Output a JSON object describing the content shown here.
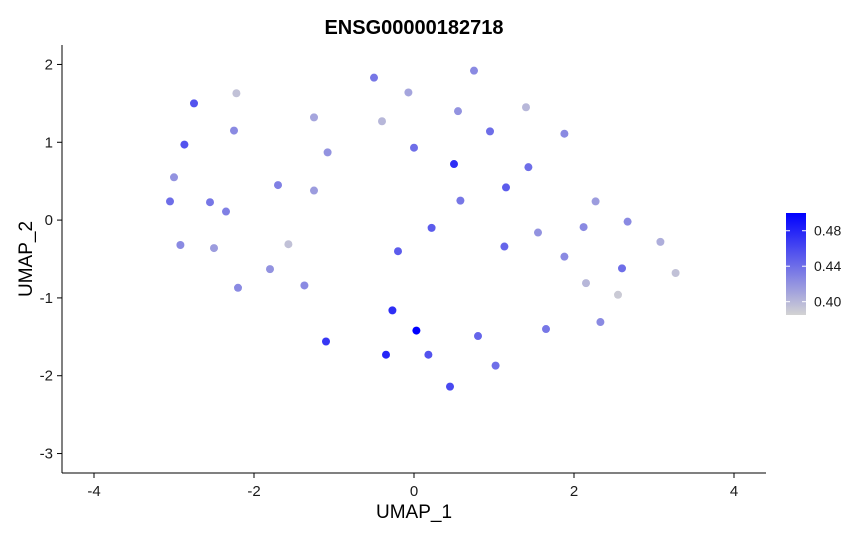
{
  "chart_data": {
    "type": "scatter",
    "title": "ENSG00000182718",
    "xlabel": "UMAP_1",
    "ylabel": "UMAP_2",
    "xlim": [
      -4.4,
      4.4
    ],
    "ylim": [
      -3.25,
      2.25
    ],
    "xticks": [
      -4,
      -2,
      0,
      2,
      4
    ],
    "yticks": [
      -3,
      -2,
      -1,
      0,
      1,
      2
    ],
    "grid": false,
    "legend": {
      "position": "right",
      "breaks": [
        0.4,
        0.44,
        0.48
      ],
      "labels": [
        "0.40",
        "0.44",
        "0.48"
      ],
      "range": [
        0.385,
        0.5
      ],
      "low_color": "#d3d3d3",
      "high_color": "#0000ff"
    },
    "points": [
      {
        "x": -2.75,
        "y": 1.5,
        "value": 0.455
      },
      {
        "x": -2.22,
        "y": 1.63,
        "value": 0.395
      },
      {
        "x": -2.25,
        "y": 1.15,
        "value": 0.425
      },
      {
        "x": -2.87,
        "y": 0.97,
        "value": 0.455
      },
      {
        "x": -3.0,
        "y": 0.55,
        "value": 0.42
      },
      {
        "x": -3.05,
        "y": 0.24,
        "value": 0.44
      },
      {
        "x": -2.55,
        "y": 0.23,
        "value": 0.435
      },
      {
        "x": -2.35,
        "y": 0.11,
        "value": 0.43
      },
      {
        "x": -2.92,
        "y": -0.32,
        "value": 0.425
      },
      {
        "x": -2.5,
        "y": -0.36,
        "value": 0.415
      },
      {
        "x": -1.57,
        "y": -0.31,
        "value": 0.395
      },
      {
        "x": -1.8,
        "y": -0.63,
        "value": 0.42
      },
      {
        "x": -2.2,
        "y": -0.87,
        "value": 0.425
      },
      {
        "x": -1.37,
        "y": -0.84,
        "value": 0.425
      },
      {
        "x": -1.7,
        "y": 0.45,
        "value": 0.43
      },
      {
        "x": -1.25,
        "y": 0.38,
        "value": 0.415
      },
      {
        "x": -1.25,
        "y": 1.32,
        "value": 0.41
      },
      {
        "x": -1.08,
        "y": 0.87,
        "value": 0.42
      },
      {
        "x": -0.5,
        "y": 1.83,
        "value": 0.435
      },
      {
        "x": -0.4,
        "y": 1.27,
        "value": 0.4
      },
      {
        "x": -0.07,
        "y": 1.64,
        "value": 0.41
      },
      {
        "x": 0.0,
        "y": 0.93,
        "value": 0.44
      },
      {
        "x": 0.75,
        "y": 1.92,
        "value": 0.425
      },
      {
        "x": 0.55,
        "y": 1.4,
        "value": 0.42
      },
      {
        "x": 0.95,
        "y": 1.14,
        "value": 0.44
      },
      {
        "x": 1.4,
        "y": 1.45,
        "value": 0.4
      },
      {
        "x": 1.88,
        "y": 1.11,
        "value": 0.425
      },
      {
        "x": 0.5,
        "y": 0.72,
        "value": 0.475
      },
      {
        "x": 1.15,
        "y": 0.42,
        "value": 0.45
      },
      {
        "x": 1.43,
        "y": 0.68,
        "value": 0.44
      },
      {
        "x": 0.58,
        "y": 0.25,
        "value": 0.435
      },
      {
        "x": 0.22,
        "y": -0.1,
        "value": 0.45
      },
      {
        "x": -0.2,
        "y": -0.4,
        "value": 0.45
      },
      {
        "x": 1.13,
        "y": -0.34,
        "value": 0.445
      },
      {
        "x": 1.55,
        "y": -0.16,
        "value": 0.42
      },
      {
        "x": 2.12,
        "y": -0.09,
        "value": 0.425
      },
      {
        "x": 2.27,
        "y": 0.24,
        "value": 0.415
      },
      {
        "x": 2.67,
        "y": -0.02,
        "value": 0.425
      },
      {
        "x": 1.88,
        "y": -0.47,
        "value": 0.425
      },
      {
        "x": 2.15,
        "y": -0.81,
        "value": 0.4
      },
      {
        "x": 2.6,
        "y": -0.62,
        "value": 0.44
      },
      {
        "x": 3.08,
        "y": -0.28,
        "value": 0.405
      },
      {
        "x": 3.27,
        "y": -0.68,
        "value": 0.395
      },
      {
        "x": 2.55,
        "y": -0.96,
        "value": 0.39
      },
      {
        "x": 2.33,
        "y": -1.31,
        "value": 0.425
      },
      {
        "x": 1.65,
        "y": -1.4,
        "value": 0.435
      },
      {
        "x": 0.8,
        "y": -1.49,
        "value": 0.445
      },
      {
        "x": 1.02,
        "y": -1.87,
        "value": 0.44
      },
      {
        "x": 0.45,
        "y": -2.14,
        "value": 0.46
      },
      {
        "x": 0.03,
        "y": -1.42,
        "value": 0.5
      },
      {
        "x": -0.27,
        "y": -1.16,
        "value": 0.475
      },
      {
        "x": -0.35,
        "y": -1.73,
        "value": 0.48
      },
      {
        "x": 0.18,
        "y": -1.73,
        "value": 0.455
      },
      {
        "x": -1.1,
        "y": -1.56,
        "value": 0.47
      }
    ]
  }
}
